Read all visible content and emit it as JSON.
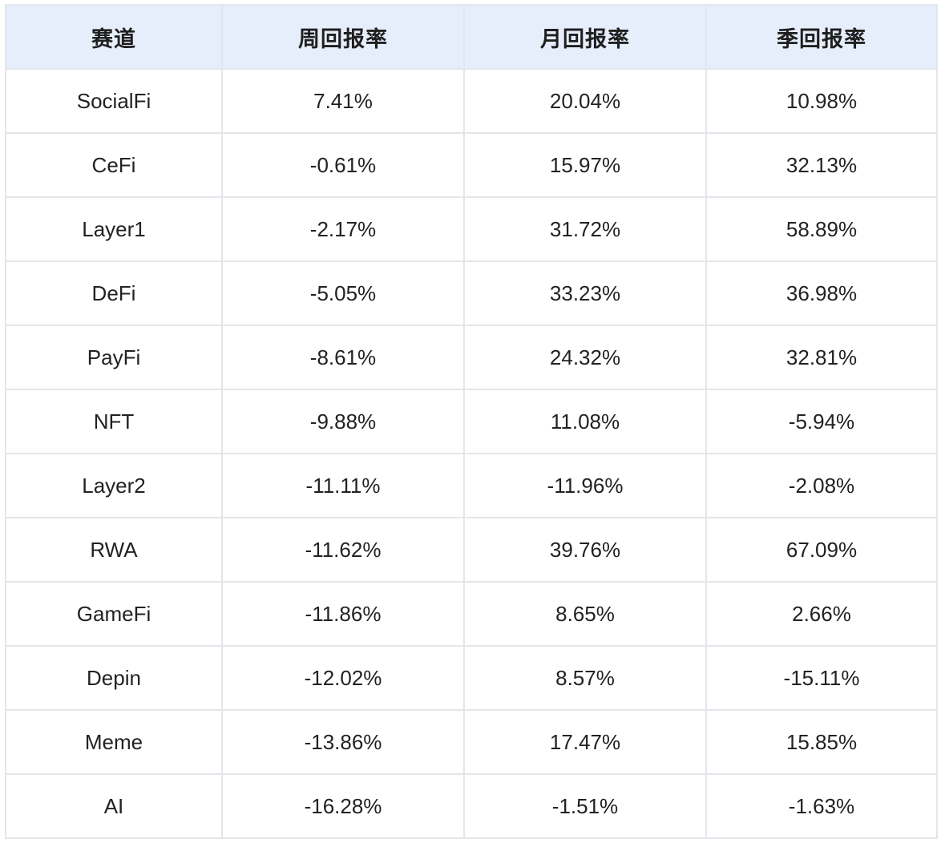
{
  "table": {
    "headers": [
      "赛道",
      "周回报率",
      "月回报率",
      "季回报率"
    ],
    "rows": [
      [
        "SocialFi",
        "7.41%",
        "20.04%",
        "10.98%"
      ],
      [
        "CeFi",
        "-0.61%",
        "15.97%",
        "32.13%"
      ],
      [
        "Layer1",
        "-2.17%",
        "31.72%",
        "58.89%"
      ],
      [
        "DeFi",
        "-5.05%",
        "33.23%",
        "36.98%"
      ],
      [
        "PayFi",
        "-8.61%",
        "24.32%",
        "32.81%"
      ],
      [
        "NFT",
        "-9.88%",
        "11.08%",
        "-5.94%"
      ],
      [
        "Layer2",
        "-11.11%",
        "-11.96%",
        "-2.08%"
      ],
      [
        "RWA",
        "-11.62%",
        "39.76%",
        "67.09%"
      ],
      [
        "GameFi",
        "-11.86%",
        "8.65%",
        "2.66%"
      ],
      [
        "Depin",
        "-12.02%",
        "8.57%",
        "-15.11%"
      ],
      [
        "Meme",
        "-13.86%",
        "17.47%",
        "15.85%"
      ],
      [
        "AI",
        "-16.28%",
        "-1.51%",
        "-1.63%"
      ]
    ]
  },
  "colors": {
    "header_bg": "#e6edfb",
    "border": "#e3e6ea",
    "text": "#222222"
  }
}
